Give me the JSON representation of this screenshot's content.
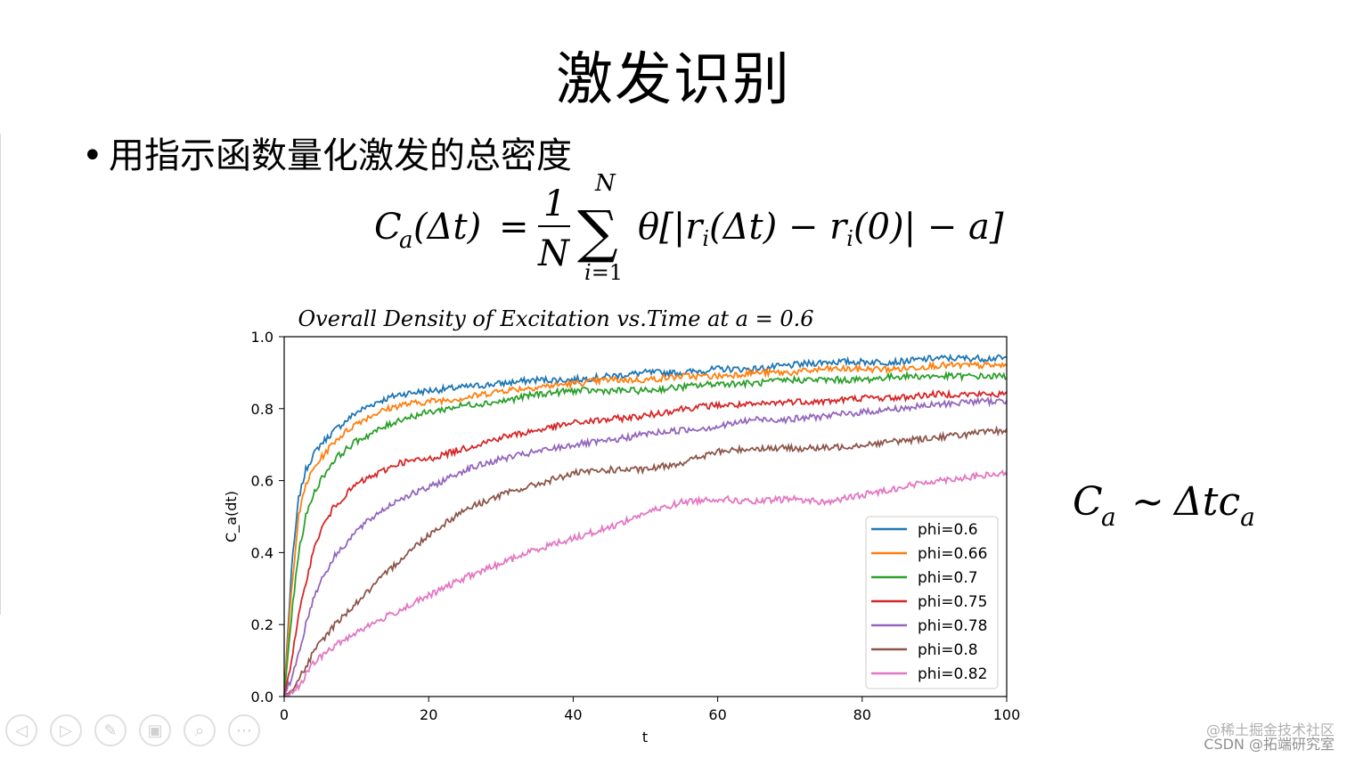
{
  "slide": {
    "title": "激发识别",
    "bullet": "用指示函数量化激发的总密度",
    "side_formula": "C_a ~ Δt c_a"
  },
  "nav": {
    "buttons": [
      {
        "name": "prev-slide-button",
        "icon": "arrow-left-icon",
        "glyph": "◁"
      },
      {
        "name": "next-slide-button",
        "icon": "arrow-right-icon",
        "glyph": "▷"
      },
      {
        "name": "pen-tool-button",
        "icon": "pen-icon",
        "glyph": "✎"
      },
      {
        "name": "slide-sorter-button",
        "icon": "slides-icon",
        "glyph": "▣"
      },
      {
        "name": "zoom-button",
        "icon": "magnifier-icon",
        "glyph": "⌕"
      },
      {
        "name": "more-options-button",
        "icon": "ellipsis-icon",
        "glyph": "⋯"
      }
    ]
  },
  "watermark": {
    "line1": "@稀土掘金技术社区",
    "line2": "CSDN @拓端研究室"
  },
  "colors": {
    "series": [
      "#1f77b4",
      "#ff7f0e",
      "#2ca02c",
      "#d62728",
      "#9467bd",
      "#8c564b",
      "#e377c2"
    ]
  },
  "chart_data": {
    "type": "line",
    "title": "Overall Density of Excitation vs.Time at a = 0.6",
    "xlabel": "t",
    "ylabel": "C_a(dt)",
    "xlim": [
      0,
      100
    ],
    "ylim": [
      0.0,
      1.0
    ],
    "xticks": [
      "0",
      "20",
      "40",
      "60",
      "80",
      "100"
    ],
    "yticks": [
      "0.0",
      "0.2",
      "0.4",
      "0.6",
      "0.8",
      "1.0"
    ],
    "grid": false,
    "legend_position": "lower-right",
    "series": [
      {
        "name": "phi=0.6",
        "color": "#1f77b4",
        "x": [
          0,
          1,
          2,
          3,
          4,
          5,
          7,
          10,
          13,
          16,
          20,
          25,
          30,
          35,
          40,
          45,
          50,
          55,
          60,
          65,
          70,
          75,
          80,
          85,
          90,
          95,
          100
        ],
        "y": [
          0.0,
          0.35,
          0.55,
          0.63,
          0.67,
          0.7,
          0.74,
          0.79,
          0.82,
          0.84,
          0.85,
          0.86,
          0.87,
          0.88,
          0.88,
          0.89,
          0.9,
          0.9,
          0.91,
          0.91,
          0.92,
          0.93,
          0.93,
          0.93,
          0.94,
          0.94,
          0.94
        ]
      },
      {
        "name": "phi=0.66",
        "color": "#ff7f0e",
        "x": [
          0,
          1,
          2,
          3,
          4,
          5,
          7,
          10,
          13,
          16,
          20,
          25,
          30,
          35,
          40,
          45,
          50,
          55,
          60,
          65,
          70,
          75,
          80,
          85,
          90,
          95,
          100
        ],
        "y": [
          0.0,
          0.3,
          0.5,
          0.59,
          0.63,
          0.66,
          0.71,
          0.76,
          0.79,
          0.81,
          0.82,
          0.83,
          0.85,
          0.86,
          0.87,
          0.88,
          0.88,
          0.89,
          0.89,
          0.9,
          0.9,
          0.91,
          0.91,
          0.91,
          0.92,
          0.92,
          0.92
        ]
      },
      {
        "name": "phi=0.7",
        "color": "#2ca02c",
        "x": [
          0,
          1,
          2,
          3,
          4,
          5,
          7,
          10,
          13,
          16,
          20,
          25,
          30,
          35,
          40,
          45,
          50,
          55,
          60,
          65,
          70,
          75,
          80,
          85,
          90,
          95,
          100
        ],
        "y": [
          0.0,
          0.22,
          0.4,
          0.5,
          0.56,
          0.6,
          0.66,
          0.71,
          0.74,
          0.77,
          0.79,
          0.81,
          0.82,
          0.84,
          0.85,
          0.85,
          0.85,
          0.86,
          0.87,
          0.87,
          0.88,
          0.88,
          0.88,
          0.89,
          0.89,
          0.89,
          0.89
        ]
      },
      {
        "name": "phi=0.75",
        "color": "#d62728",
        "x": [
          0,
          1,
          2,
          3,
          4,
          5,
          7,
          10,
          13,
          16,
          20,
          25,
          30,
          35,
          40,
          45,
          50,
          55,
          60,
          65,
          70,
          75,
          80,
          85,
          90,
          95,
          100
        ],
        "y": [
          0.0,
          0.1,
          0.22,
          0.32,
          0.4,
          0.46,
          0.53,
          0.59,
          0.62,
          0.65,
          0.66,
          0.69,
          0.72,
          0.74,
          0.76,
          0.77,
          0.78,
          0.8,
          0.81,
          0.81,
          0.82,
          0.82,
          0.83,
          0.83,
          0.84,
          0.84,
          0.84
        ]
      },
      {
        "name": "phi=0.78",
        "color": "#9467bd",
        "x": [
          0,
          1,
          2,
          3,
          4,
          5,
          7,
          10,
          13,
          16,
          20,
          25,
          30,
          35,
          40,
          45,
          50,
          55,
          60,
          65,
          70,
          75,
          80,
          85,
          90,
          95,
          100
        ],
        "y": [
          0.0,
          0.05,
          0.12,
          0.2,
          0.27,
          0.32,
          0.39,
          0.46,
          0.51,
          0.55,
          0.58,
          0.63,
          0.66,
          0.68,
          0.7,
          0.71,
          0.73,
          0.74,
          0.75,
          0.77,
          0.77,
          0.78,
          0.79,
          0.8,
          0.81,
          0.82,
          0.82
        ]
      },
      {
        "name": "phi=0.8",
        "color": "#8c564b",
        "x": [
          0,
          1,
          2,
          3,
          4,
          5,
          7,
          10,
          13,
          16,
          20,
          25,
          30,
          35,
          40,
          45,
          50,
          55,
          60,
          65,
          70,
          75,
          80,
          85,
          90,
          95,
          100
        ],
        "y": [
          0.0,
          0.02,
          0.05,
          0.08,
          0.12,
          0.15,
          0.2,
          0.26,
          0.32,
          0.38,
          0.45,
          0.52,
          0.56,
          0.59,
          0.62,
          0.63,
          0.63,
          0.65,
          0.68,
          0.69,
          0.69,
          0.69,
          0.7,
          0.71,
          0.72,
          0.73,
          0.74
        ]
      },
      {
        "name": "phi=0.82",
        "color": "#e377c2",
        "x": [
          0,
          1,
          2,
          3,
          4,
          5,
          7,
          10,
          13,
          16,
          20,
          25,
          30,
          35,
          40,
          45,
          50,
          55,
          60,
          65,
          70,
          75,
          80,
          85,
          90,
          95,
          100
        ],
        "y": [
          0.0,
          0.01,
          0.03,
          0.06,
          0.09,
          0.11,
          0.14,
          0.18,
          0.21,
          0.24,
          0.28,
          0.33,
          0.37,
          0.41,
          0.44,
          0.47,
          0.51,
          0.54,
          0.55,
          0.54,
          0.55,
          0.54,
          0.56,
          0.58,
          0.6,
          0.61,
          0.62
        ]
      }
    ]
  }
}
